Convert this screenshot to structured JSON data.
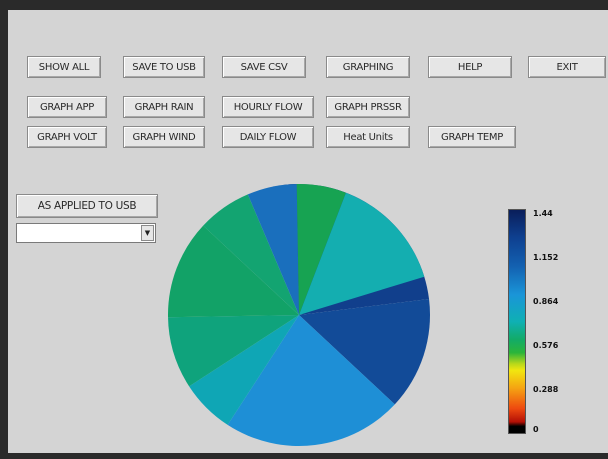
{
  "toolbar": {
    "row1": [
      "SHOW ALL",
      "SAVE TO USB",
      "SAVE CSV",
      "GRAPHING",
      "HELP",
      "EXIT"
    ],
    "row2": [
      "GRAPH APP",
      "GRAPH RAIN",
      "HOURLY FLOW",
      "GRAPH PRSSR"
    ],
    "row3": [
      "GRAPH VOLT",
      "GRAPH WIND",
      "DAILY FLOW",
      "Heat Units",
      "GRAPH TEMP"
    ]
  },
  "applied_button": "AS APPLIED TO USB",
  "dropdown": {
    "value": ""
  },
  "colorbar": {
    "ticks": [
      "1.44",
      "1.152",
      "0.864",
      "0.576",
      "0.288",
      "0"
    ]
  },
  "chart_data": {
    "type": "pie",
    "colors": [
      "#0a1e5a",
      "#113f8c",
      "#124b98",
      "#1e8fd6",
      "#0fa6b5",
      "#0fa37c",
      "#12a267",
      "#13a471",
      "#1a6fbd",
      "#17a352",
      "#14aeb0"
    ],
    "values": [
      1.44,
      1.2,
      1.16,
      1.0,
      0.92,
      0.86,
      0.84,
      0.86,
      1.18,
      0.82,
      0.95
    ],
    "slices_deg": [
      6,
      84,
      50,
      80,
      24,
      32,
      44,
      24,
      22,
      22,
      52
    ]
  }
}
